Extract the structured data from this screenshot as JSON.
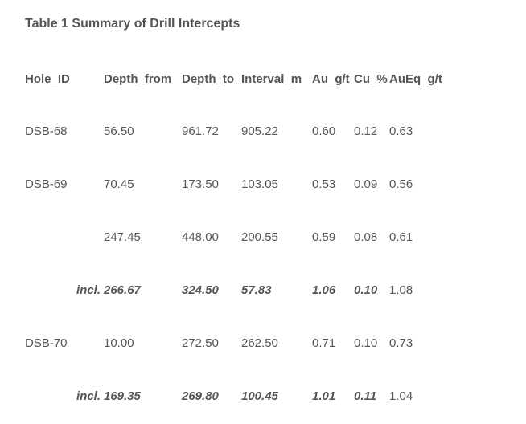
{
  "title": "Table 1 Summary of Drill Intercepts",
  "headers": [
    "Hole_ID",
    "Depth_from",
    "Depth_to",
    "Interval_m",
    "Au_g/t",
    "Cu_%",
    "AuEq_g/t"
  ],
  "rows": [
    {
      "hole": "DSB-68",
      "incl": "",
      "from": "56.50",
      "to": "961.72",
      "interval": "905.22",
      "au": "0.60",
      "cu": "0.12",
      "aueq": "0.63"
    },
    {
      "hole": "DSB-69",
      "incl": "",
      "from": "70.45",
      "to": "173.50",
      "interval": "103.05",
      "au": "0.53",
      "cu": "0.09",
      "aueq": "0.56"
    },
    {
      "hole": "",
      "incl": "",
      "from": "247.45",
      "to": "448.00",
      "interval": "200.55",
      "au": "0.59",
      "cu": "0.08",
      "aueq": "0.61"
    },
    {
      "hole": "",
      "incl": "incl.",
      "from": "266.67",
      "to": "324.50",
      "interval": "57.83",
      "au": "1.06",
      "cu": "0.10",
      "aueq": "1.08"
    },
    {
      "hole": "DSB-70",
      "incl": "",
      "from": "10.00",
      "to": "272.50",
      "interval": "262.50",
      "au": "0.71",
      "cu": "0.10",
      "aueq": "0.73"
    },
    {
      "hole": "",
      "incl": "incl.",
      "from": "169.35",
      "to": "269.80",
      "interval": "100.45",
      "au": "1.01",
      "cu": "0.11",
      "aueq": "1.04"
    }
  ]
}
